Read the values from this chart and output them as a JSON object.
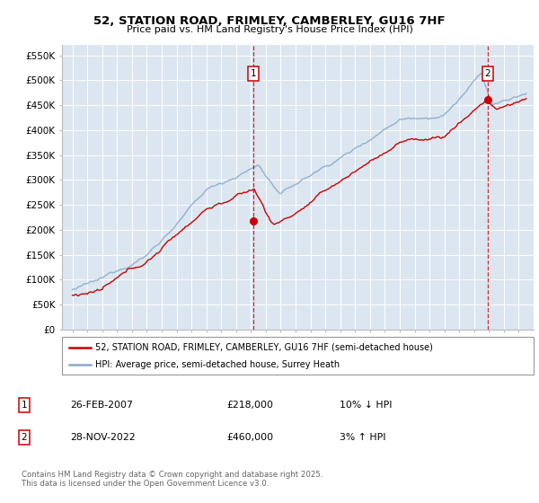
{
  "title": "52, STATION ROAD, FRIMLEY, CAMBERLEY, GU16 7HF",
  "subtitle": "Price paid vs. HM Land Registry's House Price Index (HPI)",
  "legend_line1": "52, STATION ROAD, FRIMLEY, CAMBERLEY, GU16 7HF (semi-detached house)",
  "legend_line2": "HPI: Average price, semi-detached house, Surrey Heath",
  "annotation1_date": "26-FEB-2007",
  "annotation1_price": 218000,
  "annotation1_hpi": "10% ↓ HPI",
  "annotation2_date": "28-NOV-2022",
  "annotation2_price": 460000,
  "annotation2_hpi": "3% ↑ HPI",
  "footer": "Contains HM Land Registry data © Crown copyright and database right 2025.\nThis data is licensed under the Open Government Licence v3.0.",
  "line_color_actual": "#cc0000",
  "line_color_hpi": "#88aacc",
  "background_color": "#dce6f0",
  "ylim": [
    0,
    570000
  ],
  "yticks": [
    0,
    50000,
    100000,
    150000,
    200000,
    250000,
    300000,
    350000,
    400000,
    450000,
    500000,
    550000
  ],
  "sale1_year": 2007.15,
  "sale1_price": 218000,
  "sale2_year": 2022.91,
  "sale2_price": 460000
}
